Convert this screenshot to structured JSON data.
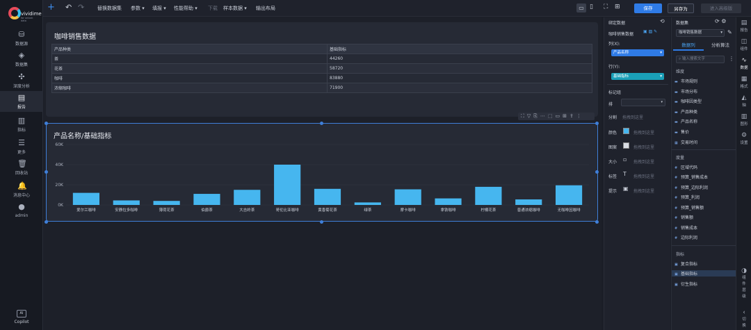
{
  "brand": {
    "name": "vividime",
    "tagline": "for unlock data"
  },
  "nav": [
    {
      "icon": "database-icon",
      "glyph": "⛁",
      "label": "数据源"
    },
    {
      "icon": "dataset-icon",
      "glyph": "◈",
      "label": "数据集"
    },
    {
      "icon": "deep-analysis-icon",
      "glyph": "✣",
      "label": "深度分析"
    },
    {
      "icon": "report-icon",
      "glyph": "▤",
      "label": "报告"
    },
    {
      "icon": "metrics-icon",
      "glyph": "▥",
      "label": "指标"
    },
    {
      "icon": "more-icon",
      "glyph": "☰",
      "label": "更多"
    },
    {
      "icon": "trash-icon",
      "glyph": "🗑",
      "label": "回收站"
    },
    {
      "icon": "bell-icon",
      "glyph": "🔔",
      "label": "消息中心"
    },
    {
      "icon": "user-icon",
      "glyph": "●",
      "label": "admin"
    }
  ],
  "copilot": {
    "label": "Copilot",
    "badge": "AI"
  },
  "toolbar": {
    "add": "+",
    "undo": "↶",
    "redo": "↷",
    "items": [
      "替换数据集",
      "参数",
      "填报",
      "性能帮助",
      "下载",
      "样本数据",
      "输出布局"
    ],
    "save": "保存",
    "save_as": "另存为",
    "advanced": "进入高级版"
  },
  "table_card": {
    "title": "咖啡销售数据",
    "headers": [
      "产品种类",
      "基础指标"
    ],
    "rows": [
      [
        "茶",
        "44260"
      ],
      [
        "花茶",
        "58720"
      ],
      [
        "咖啡",
        "83880"
      ],
      [
        "浓缩咖啡",
        "71900"
      ]
    ]
  },
  "chart_card": {
    "title": "产品名称/基础指标"
  },
  "chart_data": {
    "type": "bar",
    "categories": [
      "爱尔兰咖啡",
      "安静拉多咖啡",
      "薄荷花茶",
      "伯爵茶",
      "大吉岭茶",
      "哥伦比亚咖啡",
      "黄香菊花茶",
      "绿茶",
      "摩卡咖啡",
      "拿铁咖啡",
      "柠檬花茶",
      "普通浓缩咖啡",
      "无咖啡因咖啡"
    ],
    "values": [
      12000,
      4500,
      4000,
      11000,
      15000,
      40000,
      16000,
      2500,
      15500,
      6500,
      18000,
      5500,
      19500
    ],
    "ylim": [
      0,
      60000
    ],
    "yticks": [
      "0K",
      "20K",
      "40K",
      "60K"
    ],
    "bar_color": "#46b6ef"
  },
  "panel1": {
    "header": "绑定数据",
    "dataset_label": "咖啡销售数据",
    "col_label": "列(X):",
    "col_pill": "产品名称",
    "row_label": "行(Y):",
    "row_pill": "基础指标",
    "marks_label": "标记组",
    "sort_label": "排",
    "group_label": "分割",
    "group_hint": "拖拽到这里",
    "props": [
      {
        "label": "颜色",
        "hint": "拖拽到这里"
      },
      {
        "label": "图案",
        "hint": "拖拽到这里"
      },
      {
        "label": "大小",
        "hint": "拖拽到这里"
      },
      {
        "label": "标签",
        "hint": "拖拽到这里"
      },
      {
        "label": "提示",
        "hint": "拖拽到这里"
      }
    ]
  },
  "panel2": {
    "header": "数据集",
    "dataset": "咖啡销售数据",
    "tabs": [
      "数据列",
      "分析算法"
    ],
    "search_placeholder": "输入搜索文字",
    "dim_header": "维度",
    "dims": [
      "市场规则",
      "市场分布",
      "咖啡因类型",
      "产品种类",
      "产品名称",
      "售价",
      "交易时间"
    ],
    "measure_header": "度量",
    "measures": [
      "区域代码",
      "预算_销售成本",
      "预算_边际利润",
      "预算_利润",
      "预算_销售额",
      "销售额",
      "销售成本",
      "边际利润"
    ],
    "metric_header": "指标",
    "metrics": [
      "复合指标",
      "基础指标",
      "衍生指标"
    ]
  },
  "panel3": [
    {
      "glyph": "▤",
      "label": "报告"
    },
    {
      "glyph": "◫",
      "label": "组件"
    },
    {
      "glyph": "∿",
      "label": "数据"
    },
    {
      "glyph": "▦",
      "label": "格式"
    },
    {
      "glyph": "◭",
      "label": "轴"
    },
    {
      "glyph": "▥",
      "label": "图形"
    },
    {
      "glyph": "⚙",
      "label": "设置"
    }
  ],
  "panel3_bottom": {
    "glyph": "◑",
    "label": "组件层级"
  },
  "panel3_toggle": "切换"
}
